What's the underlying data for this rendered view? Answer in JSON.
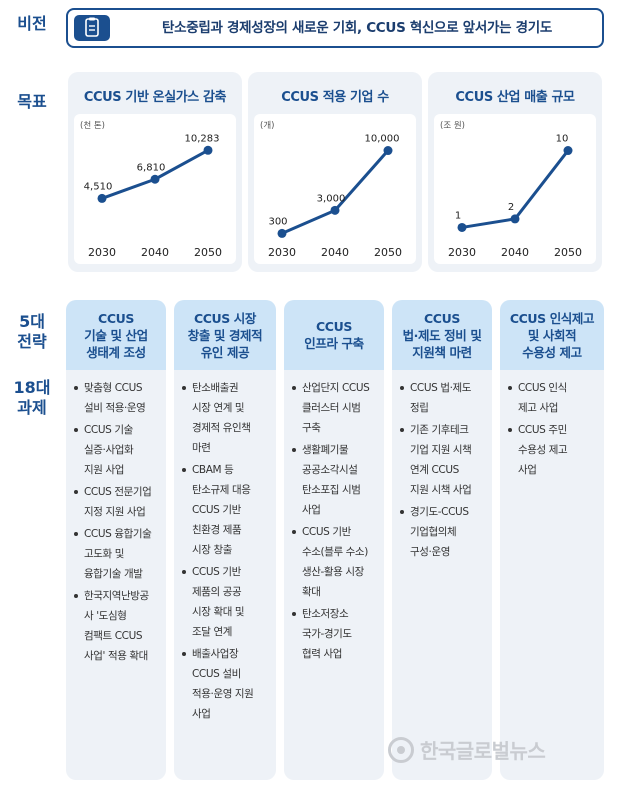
{
  "labels": {
    "vision": "비전",
    "goal": "목표",
    "strategy": "5대\n전략",
    "tasks": "18대\n과제"
  },
  "vision_text": "탄소중립과 경제성장의 새로운 기회, CCUS 혁신으로 앞서가는 경기도",
  "watermark": "한국글로벌뉴스",
  "colors": {
    "accent": "#1b4f8f",
    "panel": "#eef2f7",
    "header": "#cde4f7"
  },
  "icons": {
    "vision": "clipboard-icon",
    "watermark": "globe-logo-icon"
  },
  "chart_data": [
    {
      "type": "line",
      "title": "CCUS 기반 온실가스 감축",
      "unit": "(천 톤)",
      "categories": [
        "2030",
        "2040",
        "2050"
      ],
      "values": [
        4510,
        6810,
        10283
      ],
      "value_labels": [
        "4,510",
        "6,810",
        "10,283"
      ],
      "ylim": [
        0,
        12000
      ]
    },
    {
      "type": "line",
      "title": "CCUS 적용 기업 수",
      "unit": "(개)",
      "categories": [
        "2030",
        "2040",
        "2050"
      ],
      "values": [
        300,
        3000,
        10000
      ],
      "value_labels": [
        "300",
        "3,000",
        "10,000"
      ],
      "ylim": [
        0,
        11700
      ]
    },
    {
      "type": "line",
      "title": "CCUS 산업 매출 규모",
      "unit": "(조 원)",
      "categories": [
        "2030",
        "2040",
        "2050"
      ],
      "values": [
        1,
        2,
        10
      ],
      "value_labels": [
        "1",
        "2",
        "10"
      ],
      "ylim": [
        0,
        11.7
      ]
    }
  ],
  "strategies": [
    {
      "title": "CCUS\n기술 및 산업\n생태계 조성",
      "tasks": [
        "맞춤형 CCUS\n설비 적용·운영",
        "CCUS 기술\n실증·사업화\n지원 사업",
        "CCUS 전문기업\n지정 지원 사업",
        "CCUS 융합기술\n고도화 및\n융합기술 개발",
        "한국지역난방공\n사 '도심형\n컴팩트 CCUS\n사업' 적용 확대"
      ]
    },
    {
      "title": "CCUS 시장\n창출 및 경제적\n유인 제공",
      "tasks": [
        "탄소배출권\n시장 연계 및\n경제적 유인책\n마련",
        "CBAM 등\n탄소규제 대응\nCCUS 기반\n친환경 제품\n시장 창출",
        "CCUS 기반\n제품의 공공\n시장 확대 및\n조달 연계",
        "배출사업장\nCCUS 설비\n적용·운영 지원\n사업"
      ]
    },
    {
      "title": "CCUS\n인프라 구축",
      "tasks": [
        "산업단지 CCUS\n클러스터 시범\n구축",
        "생활폐기물\n공공소각시설\n탄소포집 시범\n사업",
        "CCUS 기반\n수소(블루 수소)\n생산-활용 시장\n확대",
        "탄소저장소\n국가-경기도\n협력 사업"
      ]
    },
    {
      "title": "CCUS\n법·제도 정비 및\n지원책 마련",
      "tasks": [
        "CCUS 법·제도\n정립",
        "기존 기후테크\n기업 지원 시책\n연계 CCUS\n지원 시책 사업",
        "경기도-CCUS\n기업협의체\n구성·운영"
      ]
    },
    {
      "title": "CCUS 인식제고\n및 사회적\n수용성 제고",
      "tasks": [
        "CCUS 인식\n제고 사업",
        "CCUS 주민\n수용성 제고\n사업"
      ]
    }
  ]
}
